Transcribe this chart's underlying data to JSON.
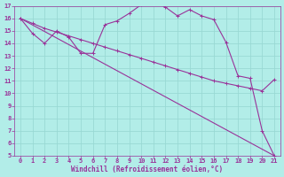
{
  "xlabel": "Windchill (Refroidissement éolien,°C)",
  "xlim": [
    -0.5,
    21.5
  ],
  "ylim": [
    5,
    17
  ],
  "xticks": [
    0,
    1,
    2,
    3,
    4,
    5,
    6,
    7,
    8,
    9,
    10,
    11,
    12,
    13,
    14,
    15,
    16,
    17,
    18,
    19,
    20,
    21
  ],
  "yticks": [
    5,
    6,
    7,
    8,
    9,
    10,
    11,
    12,
    13,
    14,
    15,
    16,
    17
  ],
  "bg_color": "#b2ede8",
  "line_color": "#993399",
  "grid_color": "#99d9d4",
  "line1_x": [
    0,
    1,
    2,
    3,
    4,
    5,
    6,
    7,
    8,
    9,
    10,
    11,
    12,
    13,
    14,
    15,
    16,
    17,
    18,
    19,
    20,
    21
  ],
  "line1_y": [
    16.0,
    14.8,
    14.0,
    15.0,
    14.5,
    13.2,
    13.2,
    15.5,
    15.8,
    16.4,
    17.1,
    17.4,
    16.9,
    16.2,
    16.7,
    16.2,
    15.9,
    14.1,
    11.4,
    11.2,
    7.0,
    5.0
  ],
  "line2_x": [
    0,
    1,
    2,
    3,
    4,
    5,
    6,
    7,
    8,
    9,
    10,
    11,
    12,
    13,
    14,
    15,
    16,
    17,
    18,
    19,
    20,
    21
  ],
  "line2_y": [
    16.0,
    15.6,
    15.2,
    14.9,
    14.6,
    14.3,
    14.0,
    13.7,
    13.4,
    13.1,
    12.8,
    12.5,
    12.2,
    11.9,
    11.6,
    11.3,
    11.0,
    10.8,
    10.6,
    10.4,
    10.2,
    11.1
  ],
  "line3_x": [
    0,
    21
  ],
  "line3_y": [
    16.0,
    5.0
  ]
}
